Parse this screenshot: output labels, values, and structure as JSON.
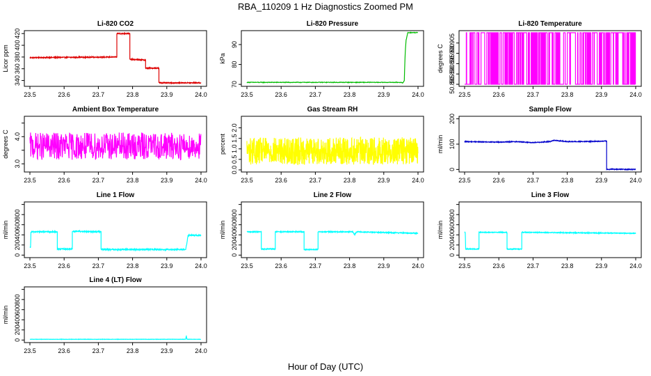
{
  "figure": {
    "title": "RBA_110209  1 Hz Diagnostics Zoomed PM",
    "xlabel": "Hour of Day (UTC)"
  },
  "chart_data": [
    {
      "type": "line",
      "title": "Li-820 CO2",
      "ylabel": "Licor ppm",
      "color": "#dd0000",
      "xlim": [
        23.5,
        24.0
      ],
      "ylim": [
        330,
        425
      ],
      "xticks": [
        23.5,
        23.6,
        23.7,
        23.8,
        23.9,
        24.0
      ],
      "xtick_labels": [
        "23.5",
        "23.6",
        "23.7",
        "23.8",
        "23.9",
        "24.0"
      ],
      "yticks": [
        340,
        360,
        380,
        400,
        420
      ],
      "ytick_labels": [
        "340",
        "360",
        "380",
        "400",
        "420"
      ],
      "noise": 0.8,
      "series": [
        {
          "name": "CO2",
          "x": [
            23.5,
            23.754,
            23.754,
            23.792,
            23.792,
            23.838,
            23.838,
            23.877,
            23.877,
            24.0
          ],
          "y": [
            379,
            380,
            420,
            420,
            376,
            375,
            361,
            361,
            336,
            336
          ]
        }
      ]
    },
    {
      "type": "line",
      "title": "Li-820 Pressure",
      "ylabel": "kPa",
      "color": "#00bb00",
      "xlim": [
        23.5,
        24.0
      ],
      "ylim": [
        69,
        97
      ],
      "xticks": [
        23.5,
        23.6,
        23.7,
        23.8,
        23.9,
        24.0
      ],
      "xtick_labels": [
        "23.5",
        "23.6",
        "23.7",
        "23.8",
        "23.9",
        "24.0"
      ],
      "yticks": [
        70,
        80,
        90
      ],
      "ytick_labels": [
        "70",
        "80",
        "90"
      ],
      "noise": 0.15,
      "series": [
        {
          "name": "Pressure",
          "x": [
            23.5,
            23.95,
            23.956,
            23.96,
            23.962,
            23.965,
            23.97,
            24.0
          ],
          "y": [
            71,
            71,
            70.6,
            72,
            84,
            92,
            96,
            96
          ]
        }
      ]
    },
    {
      "type": "line",
      "title": "Li-820 Temperature",
      "ylabel": "degrees C",
      "color": "#ff00ff",
      "xlim": [
        23.5,
        24.0
      ],
      "ylim": [
        50.884,
        50.911
      ],
      "xticks": [
        23.5,
        23.6,
        23.7,
        23.8,
        23.9,
        24.0
      ],
      "xtick_labels": [
        "23.5",
        "23.6",
        "23.7",
        "23.8",
        "23.9",
        "24.0"
      ],
      "yticks": [
        50.885,
        50.89,
        50.895,
        50.9,
        50.905
      ],
      "ytick_labels": [
        "50.885",
        "50.890",
        "50.895",
        "50.900",
        "50.905"
      ],
      "binary_levels": [
        50.885,
        50.91
      ],
      "series": [
        {
          "name": "Temperature",
          "x": [
            23.5,
            24.0
          ],
          "y": [
            50.885,
            50.91
          ]
        }
      ]
    },
    {
      "type": "line",
      "title": "Ambient Box Temperature",
      "ylabel": "degrees C",
      "color": "#ff00ff",
      "xlim": [
        23.5,
        24.0
      ],
      "ylim": [
        2.7,
        4.75
      ],
      "xticks": [
        23.5,
        23.6,
        23.7,
        23.8,
        23.9,
        24.0
      ],
      "xtick_labels": [
        "23.5",
        "23.6",
        "23.7",
        "23.8",
        "23.9",
        "24.0"
      ],
      "yticks": [
        3.0,
        3.5,
        4.0,
        4.5
      ],
      "ytick_labels": [
        "3.0",
        "",
        "4.0",
        ""
      ],
      "noise": 0.5,
      "series": [
        {
          "name": "Box Temp",
          "x": [
            23.5,
            24.0
          ],
          "y": [
            3.65,
            3.65
          ]
        }
      ]
    },
    {
      "type": "line",
      "title": "Gas Stream RH",
      "ylabel": "percent",
      "color": "#ffff00",
      "xlim": [
        23.5,
        24.0
      ],
      "ylim": [
        -0.1,
        2.55
      ],
      "xticks": [
        23.5,
        23.6,
        23.7,
        23.8,
        23.9,
        24.0
      ],
      "xtick_labels": [
        "23.5",
        "23.6",
        "23.7",
        "23.8",
        "23.9",
        "24.0"
      ],
      "yticks": [
        0,
        0.5,
        1.0,
        1.5,
        2.0
      ],
      "ytick_labels": [
        "0.0",
        "0.5",
        "1.0",
        "1.5",
        "2.0"
      ],
      "noise": 0.65,
      "series": [
        {
          "name": "RH",
          "x": [
            23.5,
            24.0
          ],
          "y": [
            0.9,
            0.9
          ]
        }
      ]
    },
    {
      "type": "line",
      "title": "Sample Flow",
      "ylabel": "ml/min",
      "color": "#0000cc",
      "xlim": [
        23.5,
        24.0
      ],
      "ylim": [
        -10,
        210
      ],
      "xticks": [
        23.5,
        23.6,
        23.7,
        23.8,
        23.9,
        24.0
      ],
      "xtick_labels": [
        "23.5",
        "23.6",
        "23.7",
        "23.8",
        "23.9",
        "24.0"
      ],
      "yticks": [
        0,
        100,
        200
      ],
      "ytick_labels": [
        "0",
        "100",
        "200"
      ],
      "noise": 1.5,
      "series": [
        {
          "name": "Sample Flow",
          "x": [
            23.5,
            23.55,
            23.6,
            23.65,
            23.7,
            23.75,
            23.76,
            23.8,
            23.85,
            23.915,
            23.915,
            23.93,
            24.0
          ],
          "y": [
            110,
            109,
            108,
            110,
            106,
            110,
            115,
            110,
            110,
            112,
            0,
            1,
            0
          ]
        }
      ]
    },
    {
      "type": "line",
      "title": "Line 1 Flow",
      "ylabel": "ml/min",
      "color": "#00ffff",
      "xlim": [
        23.5,
        24.0
      ],
      "ylim": [
        -50,
        1050
      ],
      "xticks": [
        23.5,
        23.6,
        23.7,
        23.8,
        23.9,
        24.0
      ],
      "xtick_labels": [
        "23.5",
        "23.6",
        "23.7",
        "23.8",
        "23.9",
        "24.0"
      ],
      "yticks": [
        0,
        200,
        400,
        600,
        800,
        1000
      ],
      "ytick_labels": [
        "0",
        "200",
        "400",
        "600",
        "800",
        ""
      ],
      "noise": 12,
      "series": [
        {
          "name": "Line 1",
          "x": [
            23.5,
            23.502,
            23.503,
            23.58,
            23.58,
            23.624,
            23.624,
            23.708,
            23.708,
            23.955,
            23.958,
            23.962,
            23.965,
            24.0
          ],
          "y": [
            150,
            150,
            460,
            460,
            120,
            120,
            470,
            460,
            110,
            110,
            200,
            390,
            390,
            390
          ]
        }
      ]
    },
    {
      "type": "line",
      "title": "Line 2 Flow",
      "ylabel": "ml/min",
      "color": "#00ffff",
      "xlim": [
        23.5,
        24.0
      ],
      "ylim": [
        -50,
        1050
      ],
      "xticks": [
        23.5,
        23.6,
        23.7,
        23.8,
        23.9,
        24.0
      ],
      "xtick_labels": [
        "23.5",
        "23.6",
        "23.7",
        "23.8",
        "23.9",
        "24.0"
      ],
      "yticks": [
        0,
        200,
        400,
        600,
        800,
        1000
      ],
      "ytick_labels": [
        "0",
        "200",
        "400",
        "600",
        "800",
        ""
      ],
      "noise": 9,
      "series": [
        {
          "name": "Line 2",
          "x": [
            23.5,
            23.542,
            23.542,
            23.583,
            23.583,
            23.667,
            23.667,
            23.708,
            23.708,
            23.81,
            23.815,
            23.82,
            24.0
          ],
          "y": [
            460,
            460,
            120,
            120,
            460,
            460,
            110,
            110,
            460,
            460,
            400,
            460,
            430
          ]
        }
      ]
    },
    {
      "type": "line",
      "title": "Line 3 Flow",
      "ylabel": "ml/min",
      "color": "#00ffff",
      "xlim": [
        23.5,
        24.0
      ],
      "ylim": [
        -50,
        1050
      ],
      "xticks": [
        23.5,
        23.6,
        23.7,
        23.8,
        23.9,
        24.0
      ],
      "xtick_labels": [
        "23.5",
        "23.6",
        "23.7",
        "23.8",
        "23.9",
        "24.0"
      ],
      "yticks": [
        0,
        200,
        400,
        600,
        800,
        1000
      ],
      "ytick_labels": [
        "0",
        "200",
        "400",
        "600",
        "800",
        ""
      ],
      "noise": 8,
      "series": [
        {
          "name": "Line 3",
          "x": [
            23.5,
            23.502,
            23.503,
            23.542,
            23.542,
            23.624,
            23.624,
            23.667,
            23.667,
            24.0
          ],
          "y": [
            450,
            450,
            120,
            120,
            450,
            450,
            120,
            120,
            450,
            430
          ]
        }
      ]
    },
    {
      "type": "line",
      "title": "Line 4 (LT) Flow",
      "ylabel": "ml/min",
      "color": "#00ffff",
      "xlim": [
        23.5,
        24.0
      ],
      "ylim": [
        -50,
        1050
      ],
      "xticks": [
        23.5,
        23.6,
        23.7,
        23.8,
        23.9,
        24.0
      ],
      "xtick_labels": [
        "23.5",
        "23.6",
        "23.7",
        "23.8",
        "23.9",
        "24.0"
      ],
      "yticks": [
        0,
        200,
        400,
        600,
        800,
        1000
      ],
      "ytick_labels": [
        "0",
        "200",
        "400",
        "600",
        "800",
        ""
      ],
      "noise": 3,
      "series": [
        {
          "name": "Line 4",
          "x": [
            23.5,
            23.955,
            23.957,
            23.959,
            23.961,
            24.0
          ],
          "y": [
            15,
            15,
            80,
            20,
            15,
            15
          ]
        }
      ]
    }
  ]
}
